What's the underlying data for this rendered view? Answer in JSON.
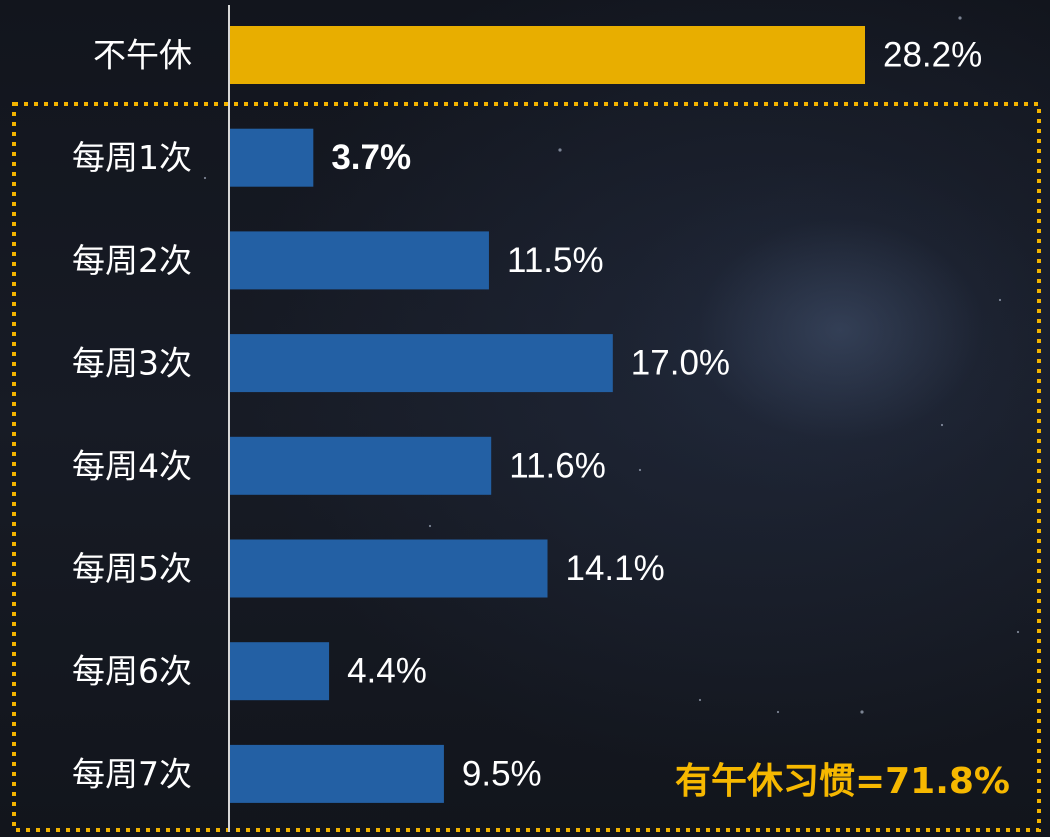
{
  "chart_data": {
    "type": "bar",
    "orientation": "horizontal",
    "categories": [
      "不午休",
      "每周1次",
      "每周2次",
      "每周3次",
      "每周4次",
      "每周5次",
      "每周6次",
      "每周7次"
    ],
    "values": [
      28.2,
      3.7,
      11.5,
      17.0,
      11.6,
      14.1,
      4.4,
      9.5
    ],
    "value_labels": [
      "28.2%",
      "3.7%",
      "11.5%",
      "17.0%",
      "11.6%",
      "14.1%",
      "4.4%",
      "9.5%"
    ],
    "title": "",
    "xlabel": "",
    "ylabel": "",
    "xlim": [
      0,
      35
    ],
    "grid": false,
    "legend": "none",
    "highlight_color": "#e8ae00",
    "bar_color": "#2360a4",
    "dotted_frame_color": "#f2b300",
    "annotation": "有午休习惯=71.8%"
  }
}
